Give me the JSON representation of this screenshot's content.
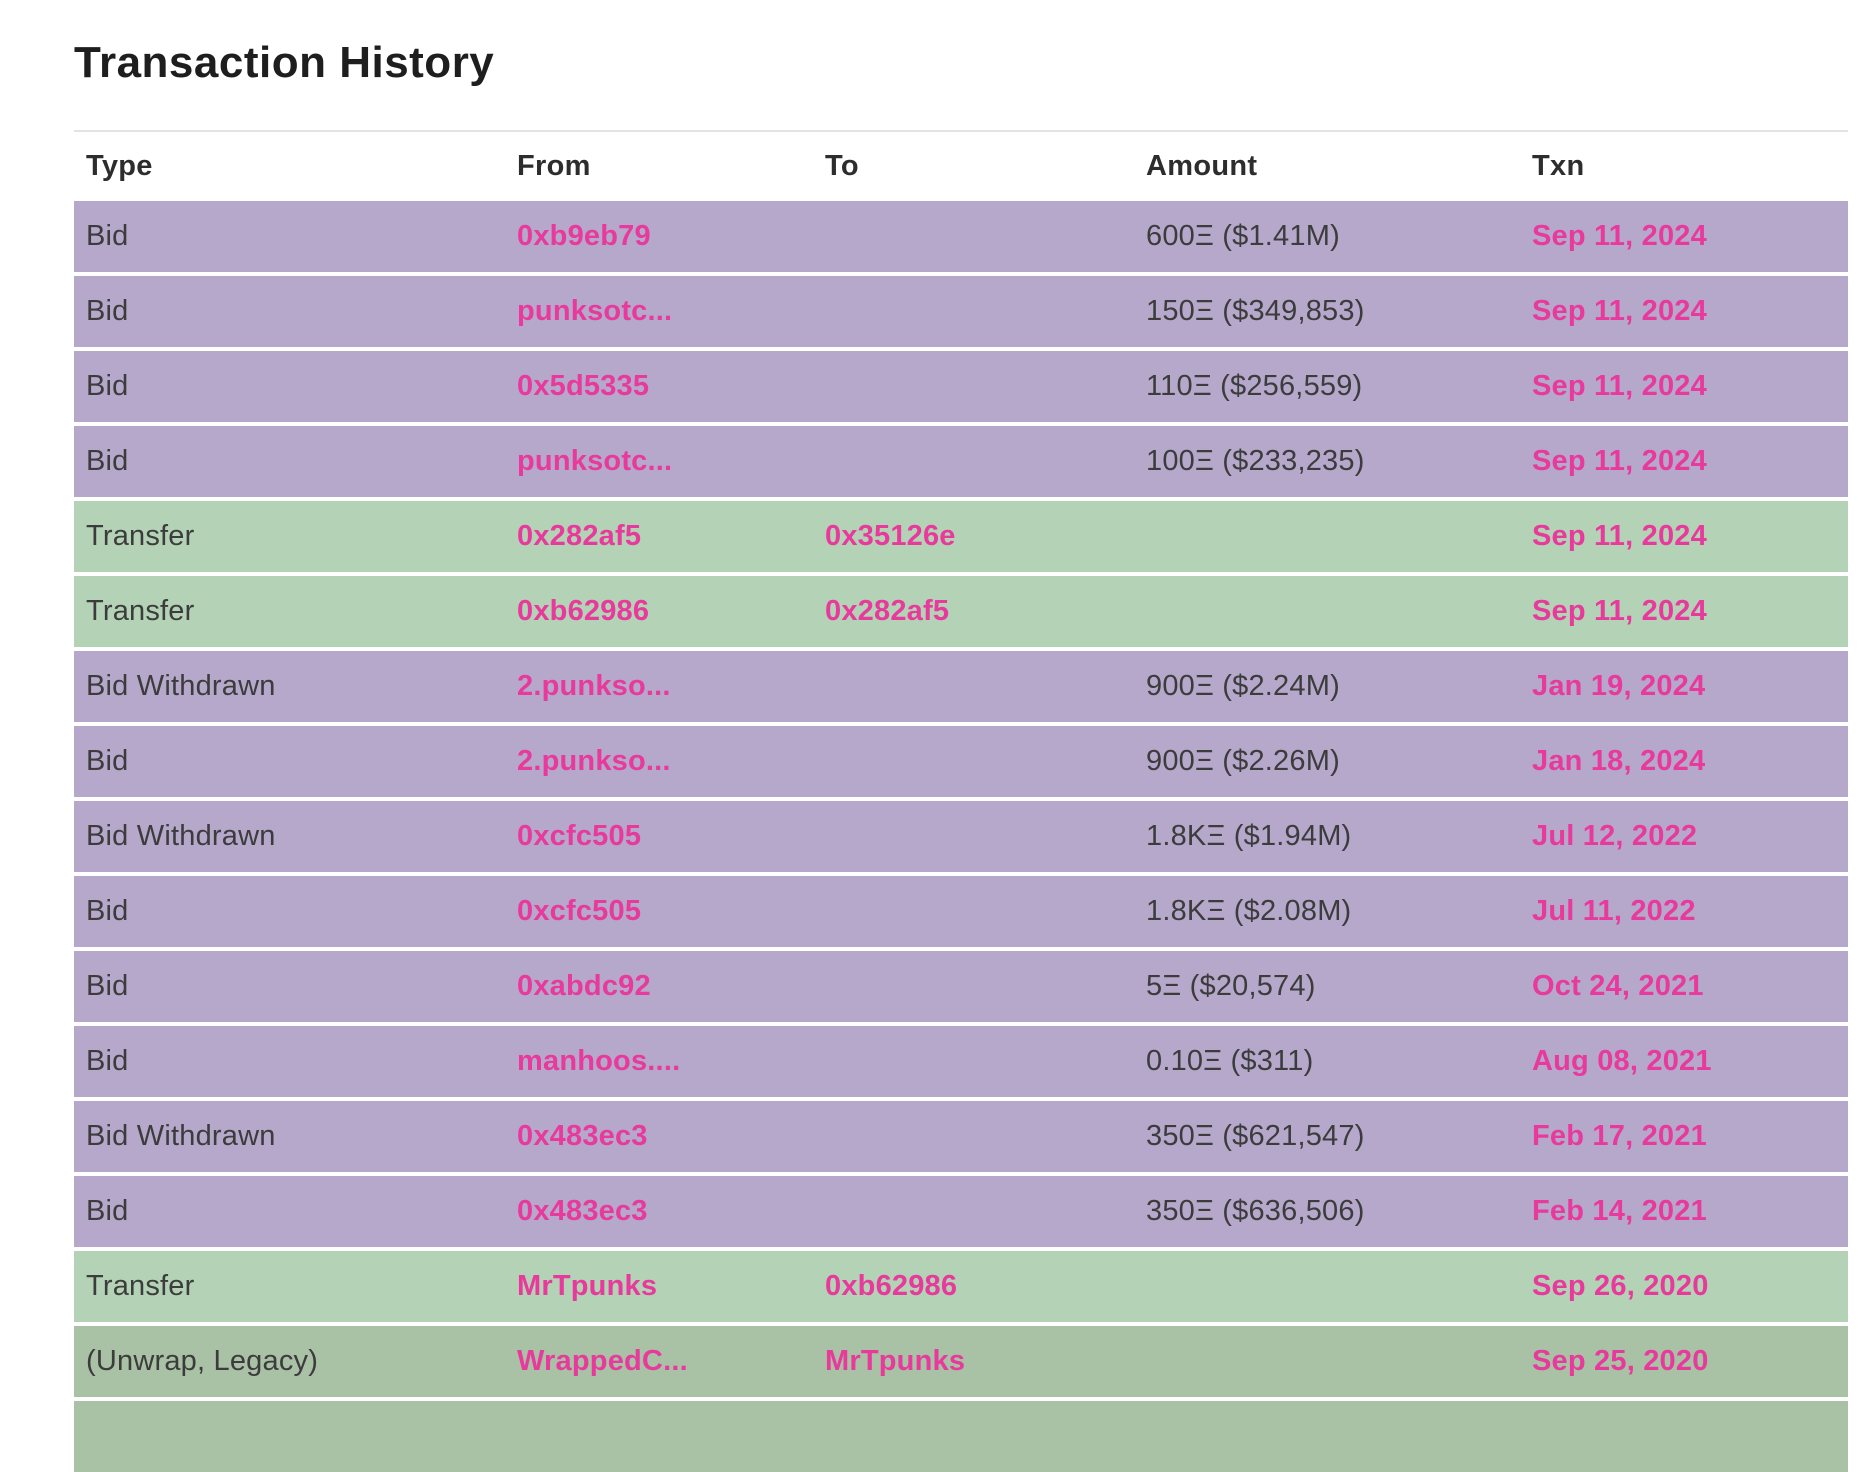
{
  "page": {
    "title": "Transaction History"
  },
  "colors": {
    "accent": "#e8399c",
    "row_bid": "#b5a8cb",
    "row_transfer": "#b4d2b6",
    "row_wrap": "#a9c1a5",
    "header_rule": "#e3e3e3",
    "text_dark": "#3c3c3c"
  },
  "table": {
    "columns": [
      "Type",
      "From",
      "To",
      "Amount",
      "Txn"
    ],
    "rows": [
      {
        "type": "Bid",
        "from": "0xb9eb79",
        "to": "",
        "amount": "600Ξ ($1.41M)",
        "txn": "Sep 11, 2024",
        "variant": "bid"
      },
      {
        "type": "Bid",
        "from": "punksotc...",
        "to": "",
        "amount": "150Ξ ($349,853)",
        "txn": "Sep 11, 2024",
        "variant": "bid"
      },
      {
        "type": "Bid",
        "from": "0x5d5335",
        "to": "",
        "amount": "110Ξ ($256,559)",
        "txn": "Sep 11, 2024",
        "variant": "bid"
      },
      {
        "type": "Bid",
        "from": "punksotc...",
        "to": "",
        "amount": "100Ξ ($233,235)",
        "txn": "Sep 11, 2024",
        "variant": "bid"
      },
      {
        "type": "Transfer",
        "from": "0x282af5",
        "to": "0x35126e",
        "amount": "",
        "txn": "Sep 11, 2024",
        "variant": "transfer"
      },
      {
        "type": "Transfer",
        "from": "0xb62986",
        "to": "0x282af5",
        "amount": "",
        "txn": "Sep 11, 2024",
        "variant": "transfer"
      },
      {
        "type": "Bid Withdrawn",
        "from": "2.punkso...",
        "to": "",
        "amount": "900Ξ ($2.24M)",
        "txn": "Jan 19, 2024",
        "variant": "bid"
      },
      {
        "type": "Bid",
        "from": "2.punkso...",
        "to": "",
        "amount": "900Ξ ($2.26M)",
        "txn": "Jan 18, 2024",
        "variant": "bid"
      },
      {
        "type": "Bid Withdrawn",
        "from": "0xcfc505",
        "to": "",
        "amount": "1.8KΞ ($1.94M)",
        "txn": "Jul 12, 2022",
        "variant": "bid"
      },
      {
        "type": "Bid",
        "from": "0xcfc505",
        "to": "",
        "amount": "1.8KΞ ($2.08M)",
        "txn": "Jul 11, 2022",
        "variant": "bid"
      },
      {
        "type": "Bid",
        "from": "0xabdc92",
        "to": "",
        "amount": "5Ξ ($20,574)",
        "txn": "Oct 24, 2021",
        "variant": "bid"
      },
      {
        "type": "Bid",
        "from": "manhoos....",
        "to": "",
        "amount": "0.10Ξ ($311)",
        "txn": "Aug 08, 2021",
        "variant": "bid"
      },
      {
        "type": "Bid Withdrawn",
        "from": "0x483ec3",
        "to": "",
        "amount": "350Ξ ($621,547)",
        "txn": "Feb 17, 2021",
        "variant": "bid"
      },
      {
        "type": "Bid",
        "from": "0x483ec3",
        "to": "",
        "amount": "350Ξ ($636,506)",
        "txn": "Feb 14, 2021",
        "variant": "bid"
      },
      {
        "type": "Transfer",
        "from": "MrTpunks",
        "to": "0xb62986",
        "amount": "",
        "txn": "Sep 26, 2020",
        "variant": "transfer"
      },
      {
        "type": "(Unwrap, Legacy)",
        "from": "WrappedC...",
        "to": "MrTpunks",
        "amount": "",
        "txn": "Sep 25, 2020",
        "variant": "wrap"
      },
      {
        "type": "",
        "from": "",
        "to": "",
        "amount": "",
        "txn": "",
        "variant": "wrap"
      }
    ]
  }
}
